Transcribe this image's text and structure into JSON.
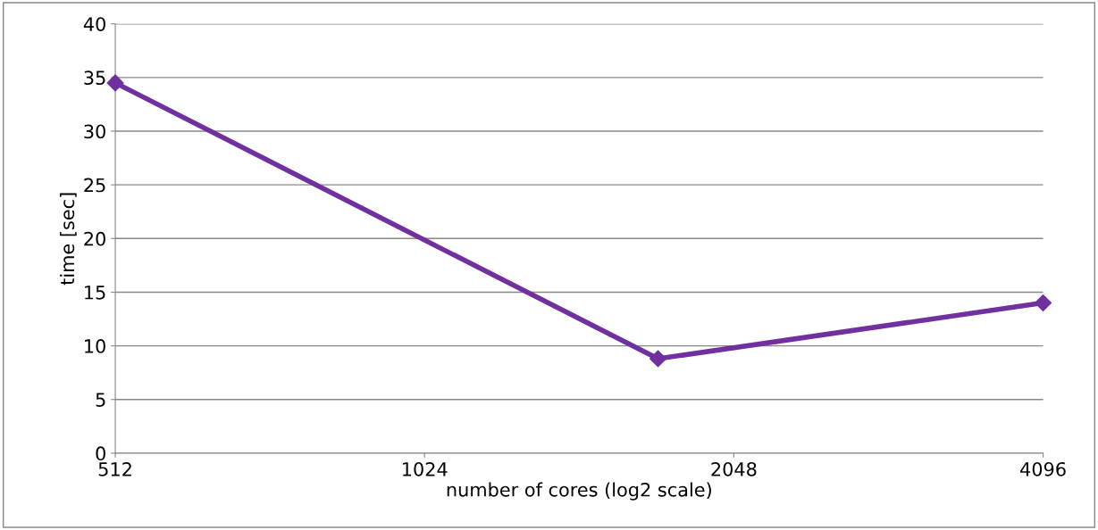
{
  "chart_data": {
    "type": "line",
    "xlabel": "number of cores (log2 scale)",
    "ylabel": "time [sec]",
    "log": "x",
    "series": [
      {
        "color": "#7030a0",
        "x": [
          512,
          1728,
          4096
        ],
        "values": [
          34.5,
          8.8,
          14.0
        ]
      }
    ],
    "xlim": [
      512,
      4096
    ],
    "xticks": [
      512,
      1024,
      2048,
      4096
    ],
    "ylim": [
      0,
      40
    ],
    "yticks": [
      0,
      5,
      10,
      15,
      20,
      25,
      30,
      35,
      40
    ],
    "grid": "y",
    "marker": "diamond",
    "line_style": "solid",
    "legend": false
  }
}
